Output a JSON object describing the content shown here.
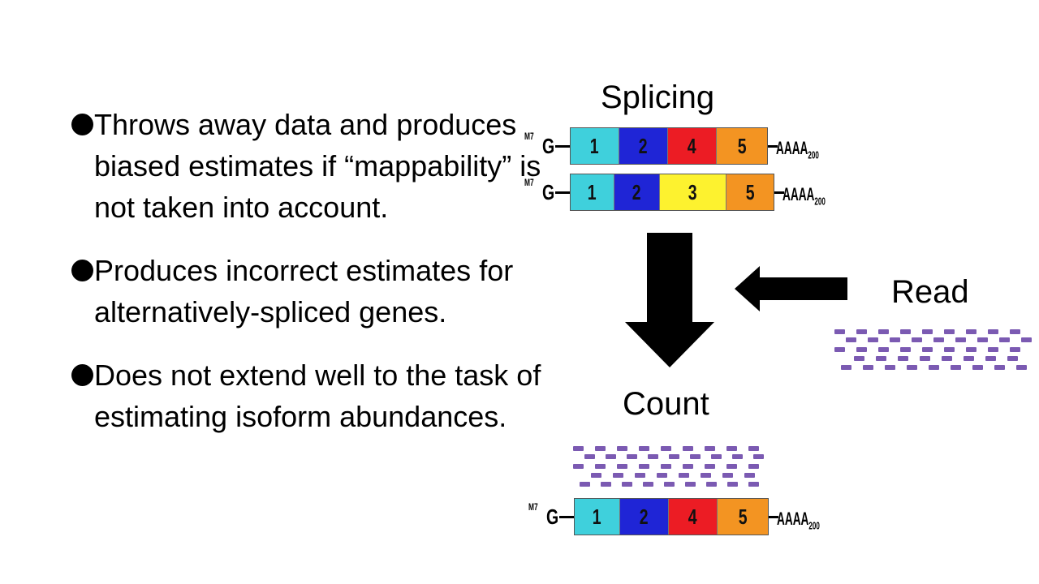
{
  "bullets": [
    {
      "text": "Throws away data and produces biased estimates if “mappability” is not taken into account."
    },
    {
      "text": "Produces incorrect estimates for alternatively-spliced genes."
    },
    {
      "text": "Does not extend well to the task of estimating isoform abundances."
    }
  ],
  "diagram": {
    "splicing_label": "Splicing",
    "count_label": "Count",
    "read_label": "Read",
    "cap_prefix": "M7",
    "cap_letter": "G",
    "tail_text": "AAAA",
    "tail_sub": "200",
    "isoforms": [
      {
        "exons": [
          {
            "label": "1",
            "color": "#3fd0dc"
          },
          {
            "label": "2",
            "color": "#1f25d6"
          },
          {
            "label": "4",
            "color": "#ec1c24"
          },
          {
            "label": "5",
            "color": "#f39422"
          }
        ]
      },
      {
        "exons": [
          {
            "label": "1",
            "color": "#3fd0dc"
          },
          {
            "label": "2",
            "color": "#1f25d6"
          },
          {
            "label": "3",
            "color": "#fdf22f"
          },
          {
            "label": "5",
            "color": "#f39422"
          }
        ]
      },
      {
        "exons": [
          {
            "label": "1",
            "color": "#3fd0dc"
          },
          {
            "label": "2",
            "color": "#1f25d6"
          },
          {
            "label": "4",
            "color": "#ec1c24"
          },
          {
            "label": "5",
            "color": "#f39422"
          }
        ]
      }
    ],
    "read_color": "#7b5ab2"
  }
}
